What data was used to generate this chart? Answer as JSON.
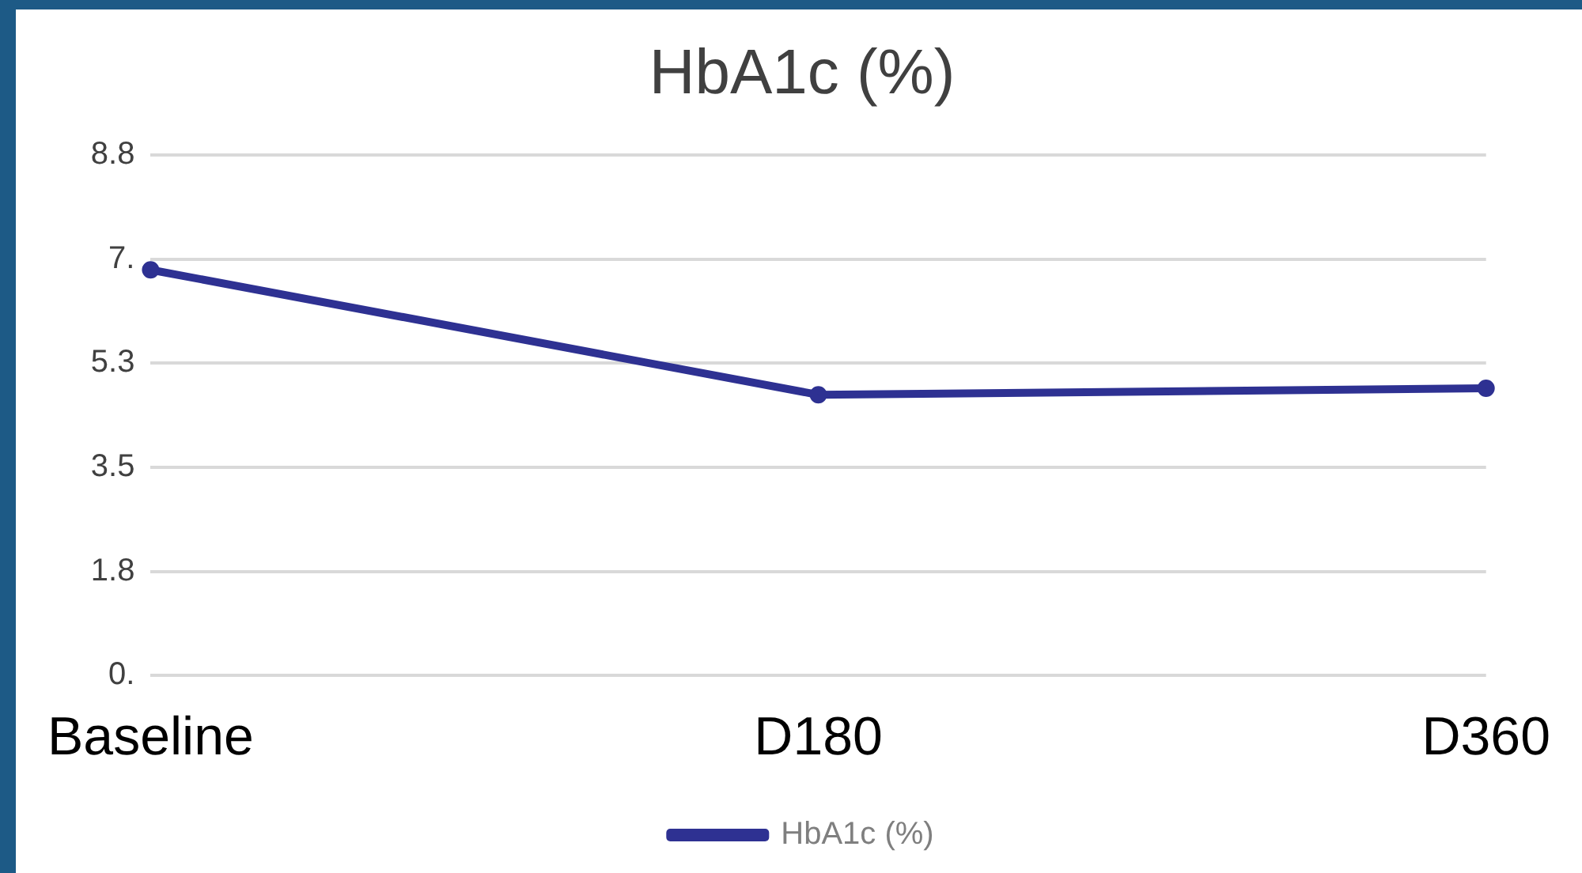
{
  "chart_data": {
    "type": "line",
    "title": "HbA1c (%)",
    "categories": [
      "Baseline",
      "D180",
      "D360"
    ],
    "series": [
      {
        "name": "HbA1c (%)",
        "color": "#2e3192",
        "values": [
          6.82,
          4.72,
          4.83
        ]
      }
    ],
    "ylim": [
      0,
      8.75
    ],
    "yticks": [
      {
        "value": 0,
        "label": "0."
      },
      {
        "value": 1.75,
        "label": "1.8"
      },
      {
        "value": 3.5,
        "label": "3.5"
      },
      {
        "value": 5.25,
        "label": "5.3"
      },
      {
        "value": 7,
        "label": "7."
      },
      {
        "value": 8.75,
        "label": "8.8"
      }
    ],
    "grid": "y",
    "legend": "bottom",
    "marker": "circle",
    "line_style": "solid"
  }
}
